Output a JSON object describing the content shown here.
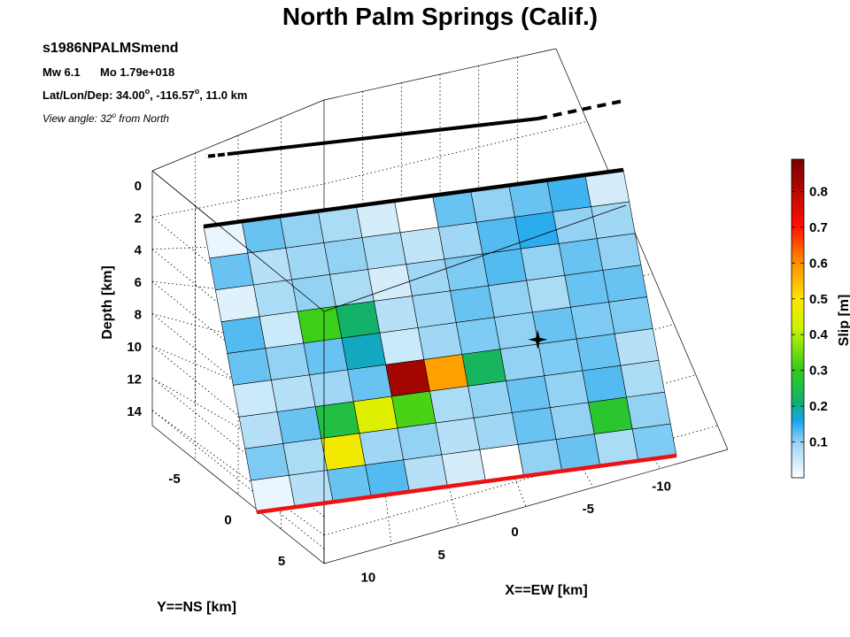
{
  "title": "North Palm Springs (Calif.)",
  "info": {
    "event_id": "s1986NPALMSmend",
    "mw_label": "Mw 6.1",
    "mo_label": "Mo 1.79e+018",
    "latlon_prefix": "Lat/Lon/Dep: 34.00",
    "latlon_mid": ", -116.57",
    "latlon_suffix": ", 11.0 km",
    "degree_mark": "o",
    "view_prefix": "View angle:  32",
    "view_suffix": " from North"
  },
  "chart_data": {
    "type": "heatmap",
    "title": "North Palm Springs (Calif.)",
    "zlabel": "Depth [km]",
    "xlabel": "X==EW [km]",
    "ylabel": "Y==NS [km]",
    "colorbar_label": "Slip [m]",
    "depth_ticks": [
      "0",
      "2",
      "4",
      "6",
      "8",
      "10",
      "12",
      "14"
    ],
    "x_ticks": [
      "-10",
      "-5",
      "0",
      "5",
      "10"
    ],
    "y_ticks": [
      "-5",
      "0",
      "5"
    ],
    "colorbar_ticks": [
      "0.1",
      "0.2",
      "0.3",
      "0.4",
      "0.5",
      "0.6",
      "0.7",
      "0.8"
    ],
    "slip_range": [
      0.0,
      0.89
    ],
    "grid": true,
    "hypocenter": {
      "along_strike_index": 8,
      "down_dip_index": 4,
      "marker": "star"
    },
    "slip": [
      [
        0.02,
        0.12,
        0.1,
        0.08,
        0.04,
        0.0,
        0.12,
        0.1,
        0.12,
        0.14,
        0.04
      ],
      [
        0.12,
        0.07,
        0.09,
        0.1,
        0.08,
        0.06,
        0.09,
        0.13,
        0.15,
        0.1,
        0.09
      ],
      [
        0.03,
        0.08,
        0.1,
        0.08,
        0.04,
        0.09,
        0.11,
        0.13,
        0.1,
        0.12,
        0.1
      ],
      [
        0.13,
        0.05,
        0.31,
        0.22,
        0.07,
        0.09,
        0.12,
        0.1,
        0.08,
        0.12,
        0.12
      ],
      [
        0.12,
        0.1,
        0.12,
        0.18,
        0.05,
        0.09,
        0.11,
        0.1,
        0.12,
        0.11,
        0.11
      ],
      [
        0.05,
        0.07,
        0.09,
        0.12,
        0.83,
        0.58,
        0.23,
        0.1,
        0.11,
        0.12,
        0.07
      ],
      [
        0.07,
        0.12,
        0.26,
        0.45,
        0.32,
        0.08,
        0.1,
        0.12,
        0.1,
        0.13,
        0.08
      ],
      [
        0.11,
        0.08,
        0.48,
        0.09,
        0.1,
        0.07,
        0.09,
        0.12,
        0.1,
        0.28,
        0.1
      ],
      [
        0.02,
        0.07,
        0.12,
        0.13,
        0.07,
        0.04,
        0.0,
        0.1,
        0.12,
        0.08,
        0.11
      ]
    ]
  }
}
